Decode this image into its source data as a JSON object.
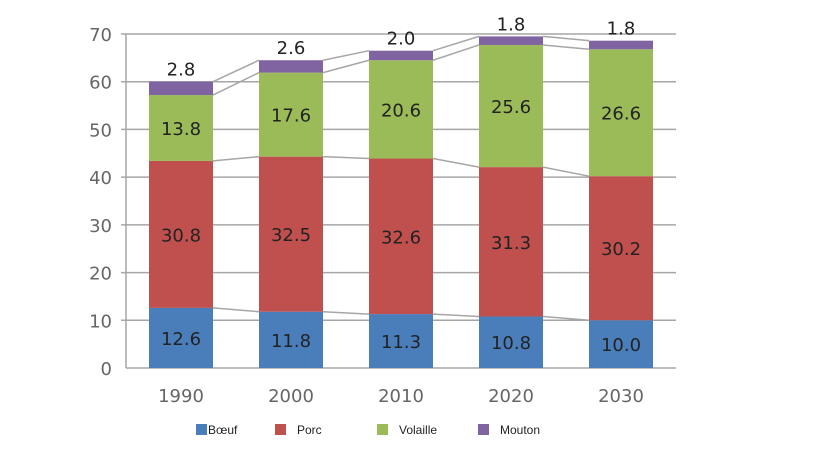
{
  "chart_data": {
    "type": "bar",
    "stacked": true,
    "categories": [
      "1990",
      "2000",
      "2010",
      "2020",
      "2030"
    ],
    "series": [
      {
        "name": "Bœuf",
        "color": "#4a7ebb",
        "values": [
          12.6,
          11.8,
          11.3,
          10.8,
          10.0
        ]
      },
      {
        "name": "Porc",
        "color": "#c0504d",
        "values": [
          30.8,
          32.5,
          32.6,
          31.3,
          30.2
        ]
      },
      {
        "name": "Volaille",
        "color": "#9bbb59",
        "values": [
          13.8,
          17.6,
          20.6,
          25.6,
          26.6
        ]
      },
      {
        "name": "Mouton",
        "color": "#8064a2",
        "values": [
          2.8,
          2.6,
          2.0,
          1.8,
          1.8
        ]
      }
    ],
    "ylim": [
      0,
      70
    ],
    "yticks": [
      0,
      10,
      20,
      30,
      40,
      50,
      60,
      70
    ],
    "grid": true,
    "series_lines": true,
    "legend": "bottom"
  }
}
